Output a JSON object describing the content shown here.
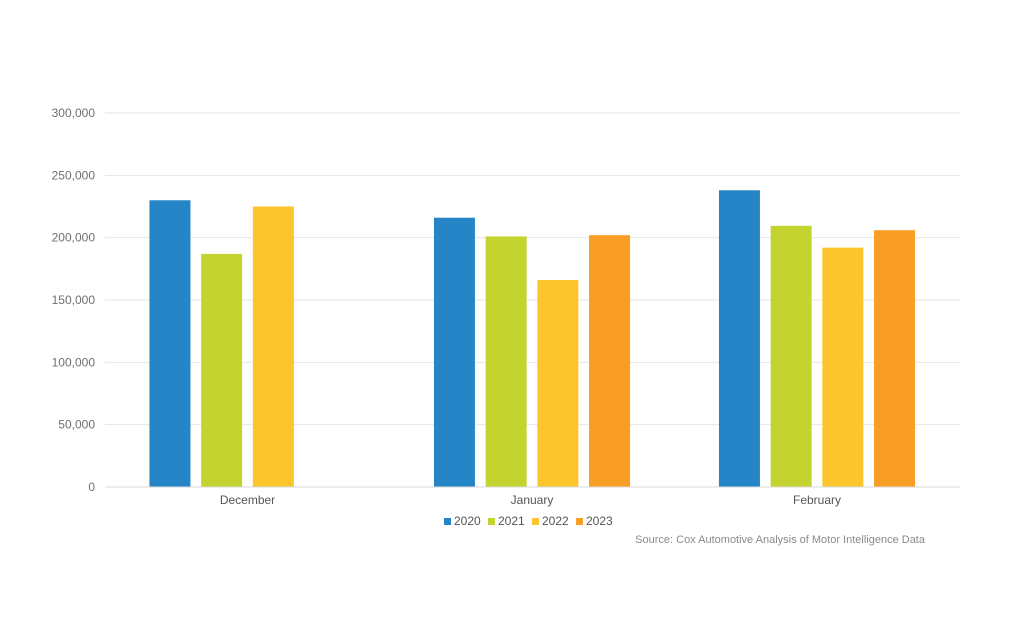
{
  "chart_data": {
    "type": "bar",
    "categories": [
      "December",
      "January",
      "February"
    ],
    "series": [
      {
        "name": "2020",
        "color": "#2585c7",
        "values": [
          230000,
          216000,
          238000
        ]
      },
      {
        "name": "2021",
        "color": "#c3d430",
        "values": [
          187000,
          201000,
          209500
        ]
      },
      {
        "name": "2022",
        "color": "#fcc52b",
        "values": [
          225000,
          166000,
          192000
        ]
      },
      {
        "name": "2023",
        "color": "#f89e24",
        "values": [
          null,
          202000,
          206000
        ]
      }
    ],
    "ylim": [
      0,
      300000
    ],
    "yticks": [
      "0",
      "50,000",
      "100,000",
      "150,000",
      "200,000",
      "250,000",
      "300,000"
    ],
    "ytick_values": [
      0,
      50000,
      100000,
      150000,
      200000,
      250000,
      300000
    ],
    "grid": true,
    "legend_position": "bottom-center",
    "title": "",
    "xlabel": "",
    "ylabel": ""
  },
  "source_note": "Source: Cox Automotive Analysis of Motor Intelligence Data"
}
